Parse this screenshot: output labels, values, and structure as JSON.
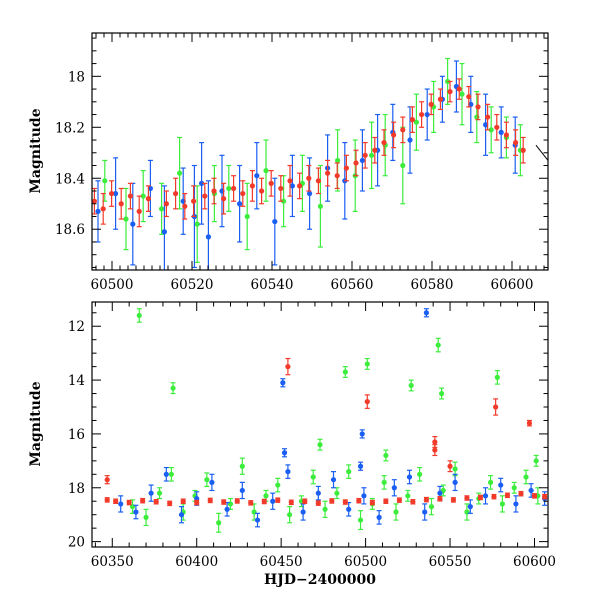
{
  "chart_data": [
    {
      "type": "scatter",
      "panel": "top",
      "title": "",
      "xlabel": "",
      "ylabel": "Magnitude",
      "xlim": [
        60495,
        60609
      ],
      "ylim": [
        18.76,
        17.83
      ],
      "y_inverted": true,
      "x_ticks": [
        60500,
        60520,
        60540,
        60560,
        60580,
        60600
      ],
      "x_tick_labels": [
        "60500",
        "60520",
        "60540",
        "60560",
        "60580",
        "60600"
      ],
      "y_ticks": [
        18.0,
        18.2,
        18.4,
        18.6
      ],
      "y_tick_labels": [
        "18",
        "18.2",
        "18.4",
        "18.6"
      ],
      "grid": false,
      "legend": "none",
      "model_line": {
        "color": "#000000",
        "x": [
          60606,
          60609
        ],
        "y": [
          18.27,
          18.33
        ]
      },
      "series": [
        {
          "color": "#3ded3d",
          "x": [
            60498.2,
            60503.5,
            60507.8,
            60512.4,
            60516.9,
            60521.3,
            60525.6,
            60529.2,
            60533.8,
            60538.5,
            60542.9,
            60547.6,
            60552.1,
            60556.4,
            60560.8,
            60564.9,
            60568.3,
            60572.7,
            60576.1,
            60580.4,
            60583.9,
            60587.5,
            60591.2,
            60594.8,
            60598.6,
            60602.1
          ],
          "y": [
            18.41,
            18.56,
            18.47,
            18.52,
            18.38,
            18.58,
            18.46,
            18.44,
            18.55,
            18.37,
            18.49,
            18.42,
            18.51,
            18.33,
            18.39,
            18.31,
            18.27,
            18.35,
            18.18,
            18.12,
            18.02,
            18.07,
            18.16,
            18.21,
            18.24,
            18.29
          ],
          "err": [
            0.08,
            0.12,
            0.1,
            0.1,
            0.14,
            0.15,
            0.11,
            0.09,
            0.13,
            0.12,
            0.1,
            0.11,
            0.16,
            0.12,
            0.14,
            0.13,
            0.12,
            0.15,
            0.11,
            0.1,
            0.09,
            0.12,
            0.1,
            0.09,
            0.08,
            0.1
          ]
        },
        {
          "color": "#1a5ff2",
          "x": [
            60496.5,
            60500.9,
            60505.2,
            60509.6,
            60513.1,
            60517.8,
            60520.6,
            60522.4,
            60524.1,
            60527.5,
            60531.9,
            60536.2,
            60540.7,
            60545.1,
            60549.4,
            60553.9,
            60558.2,
            60562.6,
            60566.4,
            60570.2,
            60574.5,
            60578.8,
            60582.6,
            60586.1,
            60589.7,
            60593.4,
            60597.3,
            60600.8
          ],
          "y": [
            18.53,
            18.46,
            18.58,
            18.44,
            18.61,
            18.49,
            18.55,
            18.42,
            18.63,
            18.45,
            18.5,
            18.39,
            18.57,
            18.43,
            18.46,
            18.36,
            18.41,
            18.33,
            18.29,
            18.22,
            18.25,
            18.15,
            18.09,
            18.04,
            18.11,
            18.19,
            18.22,
            18.27
          ],
          "err": [
            0.12,
            0.14,
            0.16,
            0.11,
            0.18,
            0.13,
            0.2,
            0.16,
            0.22,
            0.14,
            0.15,
            0.13,
            0.17,
            0.12,
            0.14,
            0.13,
            0.15,
            0.12,
            0.14,
            0.11,
            0.13,
            0.1,
            0.09,
            0.1,
            0.11,
            0.12,
            0.1,
            0.11
          ]
        },
        {
          "color": "#f23a2a",
          "x": [
            60495.6,
            60497.8,
            60499.9,
            60502.3,
            60504.6,
            60506.8,
            60509.1,
            60513.6,
            60515.9,
            60518.2,
            60520.4,
            60523.2,
            60525.5,
            60527.9,
            60530.4,
            60532.7,
            60535.1,
            60537.4,
            60539.8,
            60542.2,
            60544.5,
            60546.9,
            60549.2,
            60551.6,
            60553.9,
            60556.3,
            60558.6,
            60561.0,
            60563.3,
            60565.7,
            60568.0,
            60570.4,
            60572.7,
            60575.1,
            60577.4,
            60579.8,
            60582.1,
            60584.5,
            60586.8,
            60589.2,
            60591.5,
            60593.9,
            60596.2,
            60598.6,
            60600.9,
            60602.8
          ],
          "y": [
            18.49,
            18.52,
            18.46,
            18.5,
            18.47,
            18.53,
            18.48,
            18.5,
            18.46,
            18.51,
            18.49,
            18.47,
            18.45,
            18.48,
            18.44,
            18.46,
            18.43,
            18.45,
            18.42,
            18.44,
            18.41,
            18.43,
            18.4,
            18.41,
            18.38,
            18.39,
            18.36,
            18.34,
            18.31,
            18.29,
            18.26,
            18.23,
            18.21,
            18.17,
            18.15,
            18.11,
            18.09,
            18.06,
            18.05,
            18.08,
            18.12,
            18.16,
            18.2,
            18.23,
            18.26,
            18.29
          ],
          "err": [
            0.05,
            0.06,
            0.05,
            0.06,
            0.05,
            0.06,
            0.05,
            0.05,
            0.06,
            0.05,
            0.06,
            0.05,
            0.05,
            0.06,
            0.05,
            0.05,
            0.06,
            0.05,
            0.05,
            0.05,
            0.06,
            0.05,
            0.05,
            0.05,
            0.05,
            0.05,
            0.05,
            0.05,
            0.05,
            0.05,
            0.05,
            0.05,
            0.05,
            0.05,
            0.05,
            0.04,
            0.04,
            0.04,
            0.04,
            0.04,
            0.05,
            0.05,
            0.05,
            0.05,
            0.05,
            0.05
          ]
        }
      ]
    },
    {
      "type": "scatter",
      "panel": "bottom",
      "title": "",
      "xlabel": "HJD−2400000",
      "ylabel": "Magnitude",
      "xlim": [
        60338,
        60608
      ],
      "ylim": [
        20.2,
        11.1
      ],
      "y_inverted": true,
      "x_ticks": [
        60350,
        60400,
        60450,
        60500,
        60550,
        60600
      ],
      "x_tick_labels": [
        "60350",
        "60400",
        "60450",
        "60500",
        "60550",
        "60600"
      ],
      "y_ticks": [
        12,
        14,
        16,
        18,
        20
      ],
      "y_tick_labels": [
        "12",
        "14",
        "16",
        "18",
        "20"
      ],
      "grid": false,
      "legend": "none",
      "series": [
        {
          "color": "#3ded3d",
          "x": [
            60362,
            60370,
            60378,
            60385,
            60392,
            60399,
            60406,
            60413,
            60420,
            60427,
            60434,
            60441,
            60448,
            60455,
            60462,
            60469,
            60476,
            60483,
            60490,
            60497,
            60504,
            60511,
            60518,
            60525,
            60532,
            60539,
            60546,
            60553,
            60560,
            60567,
            60574,
            60581,
            60588,
            60595,
            60602,
            60366,
            60386,
            60488,
            60501,
            60527,
            60543,
            60545,
            60578,
            60601,
            60473,
            60512
          ],
          "y": [
            18.7,
            19.1,
            18.2,
            17.5,
            18.9,
            18.3,
            17.7,
            19.3,
            18.6,
            17.2,
            18.9,
            18.3,
            17.9,
            19.0,
            18.5,
            17.6,
            18.8,
            18.2,
            17.4,
            19.2,
            18.6,
            17.8,
            18.9,
            18.3,
            17.5,
            18.7,
            18.1,
            17.3,
            18.9,
            18.4,
            17.8,
            18.6,
            18.0,
            17.6,
            18.3,
            11.6,
            14.3,
            13.7,
            13.4,
            14.2,
            12.7,
            14.5,
            13.9,
            17.0,
            16.4,
            16.8
          ],
          "err": [
            0.25,
            0.3,
            0.2,
            0.25,
            0.3,
            0.2,
            0.25,
            0.35,
            0.2,
            0.3,
            0.3,
            0.2,
            0.25,
            0.3,
            0.2,
            0.25,
            0.3,
            0.2,
            0.25,
            0.35,
            0.2,
            0.25,
            0.3,
            0.2,
            0.25,
            0.3,
            0.2,
            0.25,
            0.3,
            0.2,
            0.25,
            0.3,
            0.2,
            0.25,
            0.3,
            0.25,
            0.2,
            0.2,
            0.2,
            0.2,
            0.25,
            0.2,
            0.25,
            0.2,
            0.2,
            0.2
          ]
        },
        {
          "color": "#1a5ff2",
          "x": [
            60355,
            60364,
            60373,
            60382,
            60391,
            60400,
            60409,
            60418,
            60427,
            60436,
            60445,
            60454,
            60463,
            60472,
            60481,
            60490,
            60499,
            60508,
            60517,
            60526,
            60535,
            60544,
            60553,
            60562,
            60571,
            60580,
            60589,
            60598,
            60606,
            60451,
            60498,
            60536,
            60452,
            60497
          ],
          "y": [
            18.6,
            18.9,
            18.2,
            17.5,
            19.0,
            18.4,
            17.8,
            18.8,
            18.1,
            19.2,
            18.5,
            17.4,
            18.9,
            18.2,
            17.7,
            18.8,
            18.3,
            19.1,
            18.0,
            17.6,
            18.9,
            18.2,
            17.8,
            18.7,
            18.3,
            17.9,
            18.6,
            18.1,
            18.4,
            14.1,
            16.0,
            11.5,
            16.7,
            17.2
          ],
          "err": [
            0.3,
            0.25,
            0.3,
            0.25,
            0.3,
            0.25,
            0.3,
            0.25,
            0.3,
            0.25,
            0.3,
            0.25,
            0.3,
            0.25,
            0.3,
            0.25,
            0.3,
            0.25,
            0.3,
            0.25,
            0.3,
            0.25,
            0.3,
            0.25,
            0.3,
            0.25,
            0.3,
            0.25,
            0.25,
            0.15,
            0.15,
            0.15,
            0.15,
            0.15
          ]
        },
        {
          "color": "#f23a2a",
          "x": [
            60347,
            60352,
            60360,
            60368,
            60376,
            60384,
            60392,
            60400,
            60408,
            60416,
            60424,
            60432,
            60440,
            60448,
            60456,
            60464,
            60472,
            60480,
            60488,
            60496,
            60504,
            60512,
            60520,
            60528,
            60536,
            60544,
            60552,
            60560,
            60568,
            60576,
            60584,
            60592,
            60600,
            60606,
            60347,
            60454,
            60501,
            60577,
            60597,
            60541,
            60541,
            60550
          ],
          "y": [
            18.45,
            18.5,
            18.55,
            18.48,
            18.52,
            18.58,
            18.5,
            18.55,
            18.47,
            18.53,
            18.49,
            18.56,
            18.51,
            18.46,
            18.54,
            18.5,
            18.57,
            18.49,
            18.53,
            18.48,
            18.55,
            18.5,
            18.46,
            18.52,
            18.44,
            18.41,
            18.45,
            18.38,
            18.36,
            18.33,
            18.28,
            18.22,
            18.3,
            18.33,
            17.7,
            13.5,
            14.8,
            15.0,
            15.6,
            16.3,
            16.6,
            17.2
          ],
          "err": [
            0.08,
            0.08,
            0.08,
            0.08,
            0.08,
            0.08,
            0.08,
            0.08,
            0.08,
            0.08,
            0.08,
            0.08,
            0.08,
            0.08,
            0.08,
            0.08,
            0.08,
            0.08,
            0.08,
            0.08,
            0.08,
            0.08,
            0.08,
            0.08,
            0.08,
            0.08,
            0.08,
            0.08,
            0.08,
            0.08,
            0.08,
            0.08,
            0.08,
            0.08,
            0.15,
            0.3,
            0.25,
            0.3,
            0.1,
            0.2,
            0.2,
            0.2
          ]
        }
      ]
    }
  ]
}
